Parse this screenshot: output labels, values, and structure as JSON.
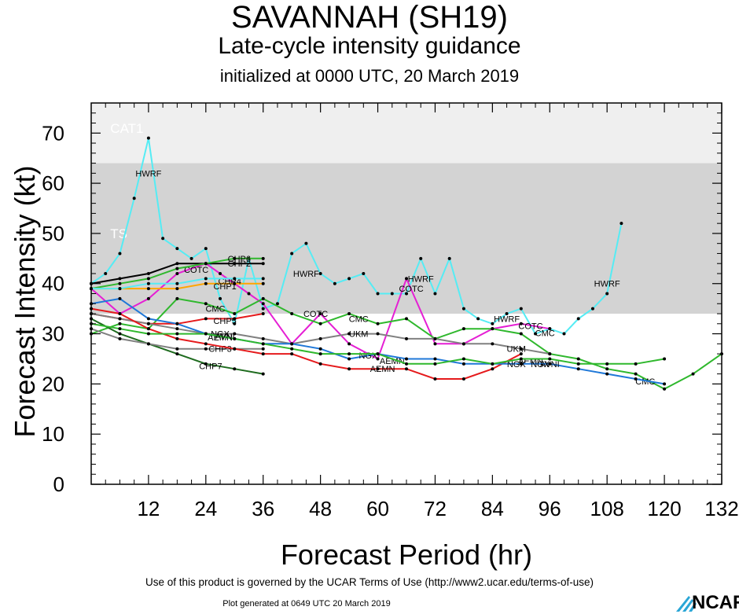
{
  "header": {
    "title": "SAVANNAH (SH19)",
    "subtitle": "Late-cycle intensity guidance",
    "init": "initialized at 0000 UTC, 20 March 2019"
  },
  "footer": {
    "terms": "Use of this product is governed by the UCAR Terms of Use (http://www2.ucar.edu/terms-of-use)",
    "generated": "Plot generated at 0649 UTC   20 March 2019",
    "logo": "NCAR"
  },
  "chart_data": {
    "type": "line",
    "title": "SAVANNAH (SH19)",
    "xlabel": "Forecast Period (hr)",
    "ylabel": "Forecast Intensity (kt)",
    "xlim": [
      0,
      132
    ],
    "ylim": [
      0,
      76
    ],
    "xticks": [
      12,
      24,
      36,
      48,
      60,
      72,
      84,
      96,
      108,
      120,
      132
    ],
    "yticks": [
      0,
      10,
      20,
      30,
      40,
      50,
      60,
      70
    ],
    "bands": [
      {
        "name": "CAT1",
        "from": 64,
        "to": 76,
        "color": "#efefef"
      },
      {
        "name": "TS",
        "from": 34,
        "to": 64,
        "color": "#d3d3d3"
      }
    ],
    "series": [
      {
        "name": "HWRF",
        "color": "#55ecf4",
        "points": [
          [
            0,
            40
          ],
          [
            3,
            42
          ],
          [
            6,
            46
          ],
          [
            9,
            57
          ],
          [
            12,
            69
          ],
          [
            15,
            49
          ],
          [
            18,
            47
          ],
          [
            21,
            45
          ],
          [
            24,
            47
          ],
          [
            27,
            37
          ],
          [
            30,
            32
          ],
          [
            33,
            45
          ],
          [
            36,
            35
          ],
          [
            39,
            36
          ],
          [
            42,
            46
          ],
          [
            45,
            48
          ],
          [
            48,
            42
          ],
          [
            51,
            40
          ],
          [
            54,
            41
          ],
          [
            57,
            42
          ],
          [
            60,
            38
          ],
          [
            63,
            38
          ],
          [
            66,
            38
          ],
          [
            69,
            45
          ],
          [
            72,
            38
          ],
          [
            75,
            45
          ],
          [
            78,
            35
          ],
          [
            81,
            33
          ],
          [
            84,
            32
          ],
          [
            87,
            34
          ],
          [
            90,
            35
          ],
          [
            93,
            30
          ],
          [
            96,
            31
          ],
          [
            99,
            30
          ],
          [
            102,
            33
          ],
          [
            105,
            35
          ],
          [
            108,
            38
          ],
          [
            111,
            52
          ]
        ],
        "labels": [
          [
            12,
            62
          ],
          [
            45,
            42
          ],
          [
            69,
            41
          ],
          [
            87,
            33
          ],
          [
            108,
            40
          ]
        ]
      },
      {
        "name": "COTC",
        "color": "#e51fd4",
        "points": [
          [
            0,
            39
          ],
          [
            6,
            34
          ],
          [
            12,
            37
          ],
          [
            18,
            42
          ],
          [
            24,
            44
          ],
          [
            27,
            42
          ],
          [
            30,
            40
          ],
          [
            33,
            38
          ],
          [
            36,
            36
          ],
          [
            42,
            28
          ],
          [
            48,
            34
          ],
          [
            54,
            28
          ],
          [
            60,
            25
          ],
          [
            66,
            41
          ],
          [
            72,
            28
          ],
          [
            78,
            28
          ],
          [
            84,
            31
          ],
          [
            90,
            32
          ],
          [
            96,
            31
          ]
        ],
        "labels": [
          [
            22,
            42.8
          ],
          [
            47,
            34
          ],
          [
            67,
            39
          ],
          [
            92,
            31.6
          ]
        ]
      },
      {
        "name": "CMC",
        "color": "#2fb82d",
        "points": [
          [
            0,
            30
          ],
          [
            6,
            32
          ],
          [
            12,
            31
          ],
          [
            18,
            37
          ],
          [
            24,
            36
          ],
          [
            30,
            34
          ],
          [
            36,
            37
          ],
          [
            42,
            34
          ],
          [
            48,
            32
          ],
          [
            54,
            34
          ],
          [
            60,
            32
          ],
          [
            66,
            33
          ],
          [
            72,
            29
          ],
          [
            78,
            31
          ],
          [
            84,
            31
          ],
          [
            90,
            30
          ],
          [
            96,
            26
          ],
          [
            102,
            25
          ],
          [
            108,
            23
          ],
          [
            114,
            22
          ],
          [
            120,
            19
          ],
          [
            126,
            22
          ],
          [
            132,
            26
          ]
        ],
        "labels": [
          [
            26,
            35
          ],
          [
            56,
            33
          ],
          [
            95,
            30.2
          ],
          [
            116,
            20.5
          ]
        ]
      },
      {
        "name": "CHP2",
        "color": "#000000",
        "points": [
          [
            0,
            40
          ],
          [
            6,
            41
          ],
          [
            12,
            42
          ],
          [
            18,
            44
          ],
          [
            24,
            44
          ],
          [
            30,
            44
          ],
          [
            36,
            44
          ]
        ],
        "labels": [
          [
            31,
            44
          ]
        ]
      },
      {
        "name": "CHP6",
        "color": "#2fb82d",
        "points": [
          [
            0,
            39
          ],
          [
            6,
            40
          ],
          [
            12,
            41
          ],
          [
            18,
            43
          ],
          [
            24,
            44
          ],
          [
            30,
            45
          ],
          [
            36,
            45
          ]
        ],
        "labels": [
          [
            31,
            45
          ]
        ]
      },
      {
        "name": "CHP4",
        "color": "#ffa500",
        "points": [
          [
            0,
            39
          ],
          [
            6,
            39
          ],
          [
            12,
            39
          ],
          [
            18,
            39
          ],
          [
            24,
            40
          ],
          [
            30,
            40
          ],
          [
            36,
            40
          ]
        ],
        "labels": [
          [
            29,
            40.5
          ]
        ]
      },
      {
        "name": "CHP1",
        "color": "#55ecf4",
        "points": [
          [
            0,
            39
          ],
          [
            6,
            39
          ],
          [
            12,
            40
          ],
          [
            18,
            40
          ],
          [
            24,
            41
          ],
          [
            30,
            41
          ],
          [
            36,
            41
          ]
        ],
        "labels": [
          [
            28,
            39.5
          ]
        ]
      },
      {
        "name": "CHP5",
        "color": "#e51a1c",
        "points": [
          [
            0,
            34
          ],
          [
            6,
            33
          ],
          [
            12,
            32
          ],
          [
            18,
            32
          ],
          [
            24,
            33
          ],
          [
            30,
            33
          ],
          [
            36,
            34
          ]
        ],
        "labels": [
          [
            28,
            32.6
          ]
        ]
      },
      {
        "name": "CHP7",
        "color": "#1e6b1e",
        "points": [
          [
            0,
            33
          ],
          [
            6,
            30
          ],
          [
            12,
            28
          ],
          [
            18,
            26
          ],
          [
            24,
            24
          ],
          [
            30,
            23
          ],
          [
            36,
            22
          ]
        ],
        "labels": [
          [
            25,
            23.6
          ]
        ]
      },
      {
        "name": "CHP3",
        "color": "#808080",
        "points": [
          [
            0,
            31
          ],
          [
            6,
            29
          ],
          [
            12,
            28
          ],
          [
            18,
            27
          ],
          [
            24,
            27
          ],
          [
            30,
            27
          ],
          [
            36,
            27
          ]
        ],
        "labels": [
          [
            27,
            27
          ]
        ]
      },
      {
        "name": "UKM",
        "color": "#808080",
        "points": [
          [
            0,
            34
          ],
          [
            6,
            33
          ],
          [
            12,
            32
          ],
          [
            18,
            31
          ],
          [
            24,
            30
          ],
          [
            30,
            30
          ],
          [
            36,
            29
          ],
          [
            42,
            28
          ],
          [
            48,
            29
          ],
          [
            54,
            30
          ],
          [
            60,
            30
          ],
          [
            66,
            29
          ],
          [
            72,
            29
          ],
          [
            78,
            28
          ],
          [
            84,
            28
          ],
          [
            90,
            27
          ],
          [
            96,
            26
          ]
        ],
        "labels": [
          [
            56,
            30
          ],
          [
            89,
            27
          ]
        ]
      },
      {
        "name": "AEMN",
        "color": "#e51a1c",
        "points": [
          [
            0,
            35
          ],
          [
            6,
            34
          ],
          [
            12,
            31
          ],
          [
            18,
            29
          ],
          [
            24,
            28
          ],
          [
            30,
            27
          ],
          [
            36,
            26
          ],
          [
            42,
            26
          ],
          [
            48,
            24
          ],
          [
            54,
            23
          ],
          [
            60,
            23
          ],
          [
            66,
            23
          ],
          [
            72,
            21
          ],
          [
            78,
            21
          ],
          [
            84,
            23
          ],
          [
            90,
            26
          ]
        ],
        "labels": [
          [
            27,
            29.3
          ],
          [
            61,
            23
          ],
          [
            63,
            24.6
          ],
          [
            92,
            24.6
          ]
        ]
      },
      {
        "name": "NGX",
        "color": "#1f78d8",
        "points": [
          [
            0,
            36
          ],
          [
            6,
            37
          ],
          [
            12,
            33
          ],
          [
            18,
            32
          ],
          [
            24,
            30
          ],
          [
            30,
            29
          ],
          [
            36,
            28
          ],
          [
            42,
            28
          ],
          [
            48,
            27
          ],
          [
            54,
            25
          ],
          [
            60,
            26
          ],
          [
            66,
            25
          ],
          [
            72,
            25
          ],
          [
            78,
            24
          ],
          [
            84,
            24
          ],
          [
            90,
            24
          ],
          [
            96,
            24
          ],
          [
            102,
            23
          ],
          [
            108,
            22
          ],
          [
            114,
            21
          ],
          [
            120,
            20
          ]
        ],
        "labels": [
          [
            27,
            30
          ],
          [
            58,
            25.7
          ],
          [
            89,
            24
          ],
          [
            94,
            24
          ]
        ]
      },
      {
        "name": "AVNI",
        "color": "#2fb82d",
        "points": [
          [
            0,
            32
          ],
          [
            6,
            31
          ],
          [
            12,
            30
          ],
          [
            18,
            30
          ],
          [
            24,
            30
          ],
          [
            30,
            29
          ],
          [
            36,
            28
          ],
          [
            42,
            27
          ],
          [
            48,
            26
          ],
          [
            54,
            26
          ],
          [
            60,
            26
          ],
          [
            66,
            24
          ],
          [
            72,
            24
          ],
          [
            78,
            25
          ],
          [
            84,
            24
          ],
          [
            90,
            25
          ],
          [
            96,
            25
          ],
          [
            102,
            24
          ],
          [
            108,
            24
          ],
          [
            114,
            24
          ],
          [
            120,
            25
          ]
        ],
        "labels": [
          [
            28,
            29.5
          ],
          [
            96,
            24
          ]
        ]
      }
    ]
  }
}
